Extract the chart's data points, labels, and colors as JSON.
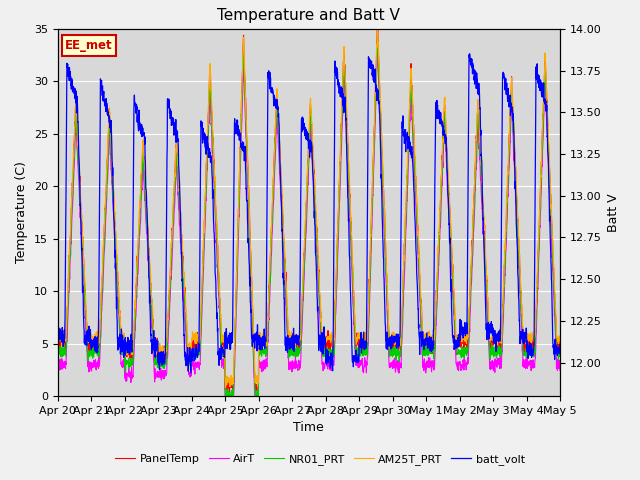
{
  "title": "Temperature and Batt V",
  "xlabel": "Time",
  "ylabel_left": "Temperature (C)",
  "ylabel_right": "Batt V",
  "annotation": "EE_met",
  "n_days": 15,
  "ylim_left": [
    0,
    35
  ],
  "ylim_right": [
    11.8,
    14.0
  ],
  "xtick_labels": [
    "Apr 20",
    "Apr 21",
    "Apr 22",
    "Apr 23",
    "Apr 24",
    "Apr 25",
    "Apr 26",
    "Apr 27",
    "Apr 28",
    "Apr 29",
    "Apr 30",
    "May 1",
    "May 2",
    "May 3",
    "May 4",
    "May 5"
  ],
  "legend_entries": [
    "PanelTemp",
    "AirT",
    "NR01_PRT",
    "AM25T_PRT",
    "batt_volt"
  ],
  "legend_colors": [
    "#ff0000",
    "#ff00ff",
    "#00cc00",
    "#ffaa00",
    "#0000ff"
  ],
  "plot_bg_color": "#d8d8d8",
  "fig_bg_color": "#f0f0f0",
  "grid_color": "#ffffff",
  "title_fontsize": 11,
  "label_fontsize": 9,
  "tick_fontsize": 8,
  "annot_facecolor": "#ffffcc",
  "annot_edgecolor": "#cc0000",
  "annot_textcolor": "#cc0000"
}
